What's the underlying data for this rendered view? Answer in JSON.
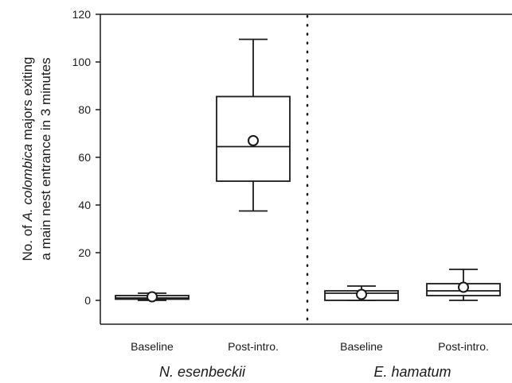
{
  "chart_data": {
    "type": "box",
    "ylabel_line1_pre": "No. of ",
    "ylabel_line1_italic": "A. colombica",
    "ylabel_line1_post": " majors exiting",
    "ylabel_line2": "a main nest entrance in 3 minutes",
    "xlabel": "",
    "ylim": [
      -10,
      120
    ],
    "yticks": [
      0,
      20,
      40,
      60,
      80,
      100,
      120
    ],
    "grid": false,
    "groups": [
      {
        "name": "N. esenbeckii",
        "categories": [
          "Baseline",
          "Post-intro."
        ]
      },
      {
        "name": "E. hamatum",
        "categories": [
          "Baseline",
          "Post-intro."
        ]
      }
    ],
    "boxes": [
      {
        "group": "N. esenbeckii",
        "category": "Baseline",
        "min": 0,
        "q1": 0.5,
        "median": 1,
        "q3": 2,
        "max": 3,
        "mean": 1.5
      },
      {
        "group": "N. esenbeckii",
        "category": "Post-intro.",
        "min": 37.5,
        "q1": 50,
        "median": 64.5,
        "q3": 85.5,
        "max": 109.5,
        "mean": 67
      },
      {
        "group": "E. hamatum",
        "category": "Baseline",
        "min": 0,
        "q1": 0,
        "median": 3,
        "q3": 4,
        "max": 6,
        "mean": 2.5
      },
      {
        "group": "E. hamatum",
        "category": "Post-intro.",
        "min": 0,
        "q1": 2,
        "median": 4,
        "q3": 7,
        "max": 13,
        "mean": 5.5
      }
    ],
    "separator": "dotted vertical line between groups",
    "colors": {
      "stroke": "#1a1a1a",
      "fill": "#ffffff"
    }
  }
}
